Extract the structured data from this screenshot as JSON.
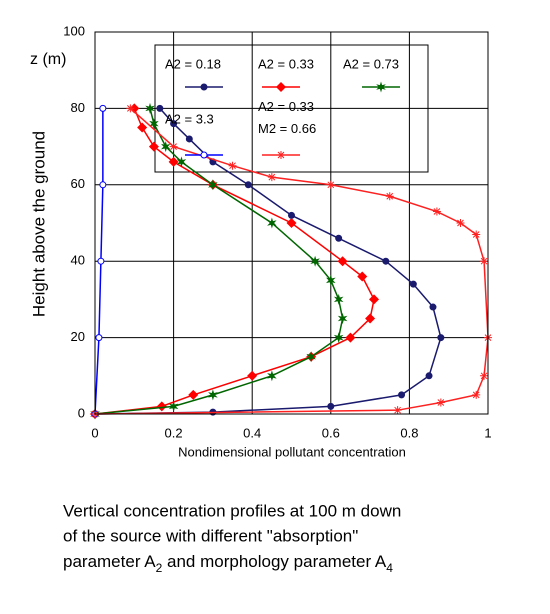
{
  "chart_data": {
    "type": "line",
    "y_axis_label": "z (m)",
    "ylabel": "Height above the ground",
    "xlabel": "Nondimensional pollutant concentration",
    "caption": [
      "Vertical concentration  profiles  at  100 m down",
      "of the source with different \"absorption\"",
      "parameter  A",
      "2",
      "  and morphology parameter  A",
      "4"
    ],
    "xlim": [
      0,
      1
    ],
    "xticks": [
      0,
      0.2,
      0.4,
      0.6,
      0.8,
      1
    ],
    "ylim": [
      0,
      100
    ],
    "yticks": [
      0,
      20,
      40,
      60,
      80,
      100
    ],
    "grid": true,
    "series": [
      {
        "name": "A2 = 0.18",
        "color": "#1a1a6e",
        "marker": "circle",
        "x": [
          0,
          0.3,
          0.6,
          0.78,
          0.85,
          0.88,
          0.86,
          0.81,
          0.74,
          0.62,
          0.5,
          0.39,
          0.3,
          0.24,
          0.2,
          0.165
        ],
        "values": [
          0,
          0.5,
          2,
          5,
          10,
          20,
          28,
          34,
          40,
          46,
          52,
          60,
          66,
          72,
          76,
          80
        ]
      },
      {
        "name": "A2 = 0.33",
        "color": "#ff0000",
        "marker": "diamond",
        "x": [
          0,
          0.17,
          0.25,
          0.4,
          0.55,
          0.65,
          0.7,
          0.71,
          0.68,
          0.63,
          0.5,
          0.3,
          0.2,
          0.15,
          0.12,
          0.1
        ],
        "values": [
          0,
          2,
          5,
          10,
          15,
          20,
          25,
          30,
          36,
          40,
          50,
          60,
          66,
          70,
          75,
          80
        ]
      },
      {
        "name": "A2 = 0.73",
        "color": "#006600",
        "marker": "star",
        "x": [
          0,
          0.2,
          0.3,
          0.45,
          0.55,
          0.62,
          0.63,
          0.62,
          0.6,
          0.56,
          0.45,
          0.3,
          0.22,
          0.18,
          0.15,
          0.14
        ],
        "values": [
          0,
          2,
          5,
          10,
          15,
          20,
          25,
          30,
          35,
          40,
          50,
          60,
          66,
          70,
          76,
          80
        ]
      },
      {
        "name": "A2 = 3.3",
        "color": "#0000ff",
        "marker": "open-circle",
        "x": [
          0,
          0.01,
          0.015,
          0.02,
          0.02
        ],
        "values": [
          0,
          20,
          40,
          60,
          80
        ]
      },
      {
        "name": "A2 = 0.33\nM2 = 0.66",
        "color": "#ff2020",
        "marker": "asterisk",
        "x": [
          0,
          0.77,
          0.88,
          0.97,
          0.99,
          1.0,
          0.99,
          0.97,
          0.93,
          0.87,
          0.75,
          0.6,
          0.45,
          0.35,
          0.2,
          0.09
        ],
        "values": [
          0,
          1,
          3,
          5,
          10,
          20,
          40,
          47,
          50,
          53,
          57,
          60,
          62,
          65,
          70,
          80
        ]
      }
    ]
  }
}
